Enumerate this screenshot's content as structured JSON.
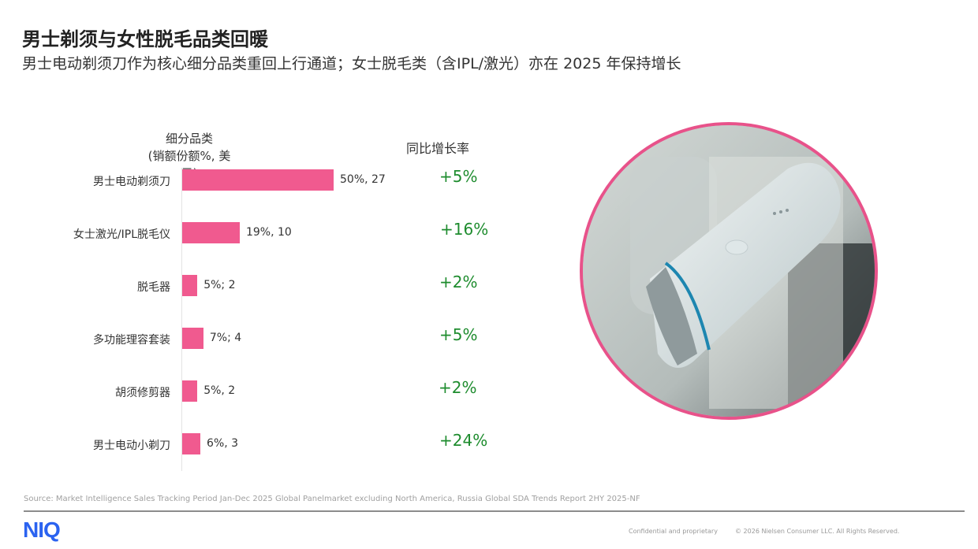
{
  "title": "男士剃须与女性脱毛品类回暖",
  "subtitle": "男士电动剃须刀作为核心细分品类重回上行通道；女士脱毛类（含IPL/激光）亦在 2025 年保持增长",
  "chart_data": {
    "type": "bar",
    "orientation": "horizontal",
    "category_header": [
      "细分品类",
      "(销额份额%, 美元)"
    ],
    "growth_header": "同比增长率",
    "categories": [
      "男士电动剃须刀",
      "女士激光/IPL脱毛仪",
      "脱毛器",
      "多功能理容套装",
      "胡须修剪器",
      "男士电动小剃刀"
    ],
    "values": [
      50,
      19,
      5,
      7,
      5,
      6
    ],
    "data_labels": [
      "50%, 27",
      "19%, 10",
      "5%; 2",
      "7%; 4",
      "5%, 2",
      "6%, 3"
    ],
    "growth": [
      "+5%",
      "+16%",
      "+2%",
      "+5%",
      "+2%",
      "+24%"
    ],
    "bar_color": "#f05a8f",
    "growth_color": "#1e8c2e",
    "xlim": [
      0,
      50
    ],
    "grid": false
  },
  "photo": {
    "subject": "handheld-ipl-device",
    "border_color": "#e8528a"
  },
  "footer": {
    "source": "Source: Market Intelligence Sales Tracking Period Jan-Dec 2025 Global Panelmarket excluding North America, Russia Global SDA Trends Report 2HY 2025-NF",
    "logo": "NIQ",
    "confidential": "Confidential and proprietary",
    "copyright": "© 2026 Nielsen Consumer LLC. All Rights Reserved."
  }
}
